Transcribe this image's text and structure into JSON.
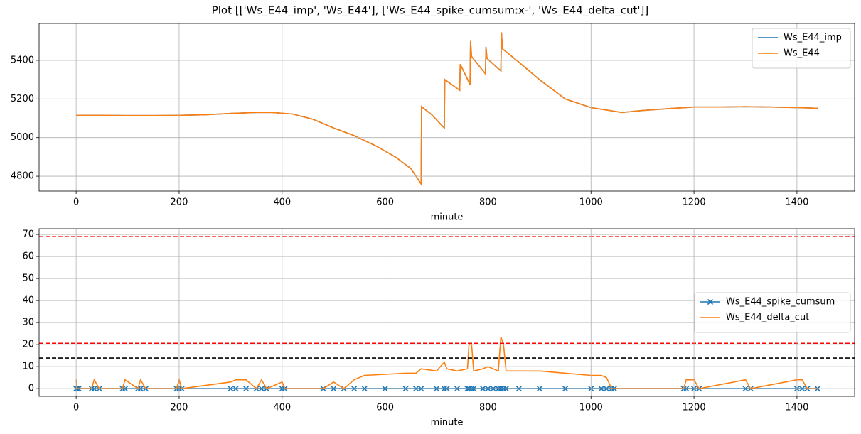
{
  "title": "Plot [['Ws_E44_imp', 'Ws_E44'], ['Ws_E44_spike_cumsum:x-', 'Ws_E44_delta_cut']]",
  "chart_data": [
    {
      "type": "line",
      "xlabel": "minute",
      "grid": true,
      "legend": "upper right",
      "xlim": [
        -72,
        1512
      ],
      "ylim": [
        4723,
        5591
      ],
      "xticks": [
        0,
        200,
        400,
        600,
        800,
        1000,
        1200,
        1400
      ],
      "yticks": [
        4800,
        5000,
        5200,
        5400
      ],
      "x": [
        0,
        50,
        100,
        150,
        200,
        250,
        300,
        350,
        380,
        420,
        460,
        500,
        540,
        580,
        620,
        650,
        670,
        671,
        690,
        715,
        716,
        745,
        746,
        765,
        766,
        768,
        795,
        796,
        798,
        825,
        826,
        828,
        860,
        900,
        950,
        1000,
        1060,
        1100,
        1150,
        1200,
        1250,
        1300,
        1350,
        1400,
        1440
      ],
      "series": [
        {
          "name": "Ws_E44_imp",
          "color": "#1f77b4",
          "values": [
            5115,
            5115,
            5114,
            5114,
            5115,
            5118,
            5125,
            5130,
            5130,
            5122,
            5095,
            5050,
            5010,
            4960,
            4900,
            4840,
            4760,
            5160,
            5120,
            5050,
            5300,
            5245,
            5380,
            5275,
            5500,
            5420,
            5330,
            5470,
            5410,
            5345,
            5545,
            5460,
            5390,
            5300,
            5200,
            5155,
            5130,
            5140,
            5150,
            5158,
            5158,
            5160,
            5158,
            5155,
            5152
          ]
        },
        {
          "name": "Ws_E44",
          "color": "#ff7f0e",
          "values": [
            5115,
            5115,
            5114,
            5114,
            5115,
            5118,
            5125,
            5130,
            5130,
            5122,
            5095,
            5050,
            5010,
            4960,
            4900,
            4840,
            4760,
            5160,
            5120,
            5050,
            5300,
            5245,
            5380,
            5275,
            5500,
            5420,
            5330,
            5470,
            5410,
            5345,
            5545,
            5460,
            5390,
            5300,
            5200,
            5155,
            5130,
            5140,
            5150,
            5158,
            5158,
            5160,
            5158,
            5155,
            5152
          ]
        }
      ]
    },
    {
      "type": "line",
      "xlabel": "minute",
      "grid": true,
      "legend": "center right",
      "xlim": [
        -72,
        1512
      ],
      "ylim": [
        -3.5,
        72.6
      ],
      "xticks": [
        0,
        200,
        400,
        600,
        800,
        1000,
        1200,
        1400
      ],
      "yticks": [
        0,
        10,
        20,
        30,
        40,
        50,
        60,
        70
      ],
      "hlines": [
        {
          "value": 69,
          "color": "#ff0000"
        },
        {
          "value": 20.6,
          "color": "#ff0000"
        },
        {
          "value": 13.9,
          "color": "#000000"
        }
      ],
      "x": [
        0,
        2,
        5,
        30,
        35,
        45,
        90,
        95,
        120,
        125,
        135,
        195,
        200,
        205,
        300,
        310,
        330,
        350,
        360,
        370,
        400,
        405,
        480,
        500,
        520,
        540,
        560,
        600,
        640,
        660,
        670,
        700,
        715,
        720,
        740,
        760,
        763,
        768,
        772,
        790,
        800,
        810,
        820,
        825,
        830,
        835,
        860,
        900,
        950,
        1000,
        1020,
        1030,
        1040,
        1045,
        1180,
        1185,
        1200,
        1210,
        1300,
        1310,
        1400,
        1410,
        1420,
        1440
      ],
      "series": [
        {
          "name": "Ws_E44_spike_cumsum",
          "color": "#1f77b4",
          "marker": "x",
          "values": [
            0,
            0,
            0,
            0,
            0,
            0,
            0,
            0,
            0,
            0,
            0,
            0,
            0,
            0,
            0,
            0,
            0,
            0,
            0,
            0,
            0,
            0,
            0,
            0,
            0,
            0,
            0,
            0,
            0,
            0,
            0,
            0,
            0,
            0,
            0,
            0,
            0,
            0,
            0,
            0,
            0,
            0,
            0,
            0,
            0,
            0,
            0,
            0,
            0,
            0,
            0,
            0,
            0,
            0,
            0,
            0,
            0,
            0,
            0,
            0,
            0,
            0,
            0,
            0
          ]
        },
        {
          "name": "Ws_E44_delta_cut",
          "color": "#ff7f0e",
          "values": [
            4,
            0,
            0,
            0,
            4,
            0,
            0,
            4,
            0,
            4,
            0,
            0,
            4,
            0,
            3,
            4,
            4,
            0,
            4,
            0,
            3,
            0,
            0,
            3,
            0,
            4,
            6,
            6.5,
            7,
            7,
            9,
            8,
            12,
            9,
            8,
            9,
            20,
            20,
            8,
            9,
            10,
            9,
            8,
            23.5,
            20,
            8,
            8,
            8,
            7,
            6,
            6,
            5,
            0,
            0,
            0,
            4,
            4,
            0,
            4,
            0,
            4,
            4,
            0,
            0
          ]
        }
      ]
    }
  ]
}
